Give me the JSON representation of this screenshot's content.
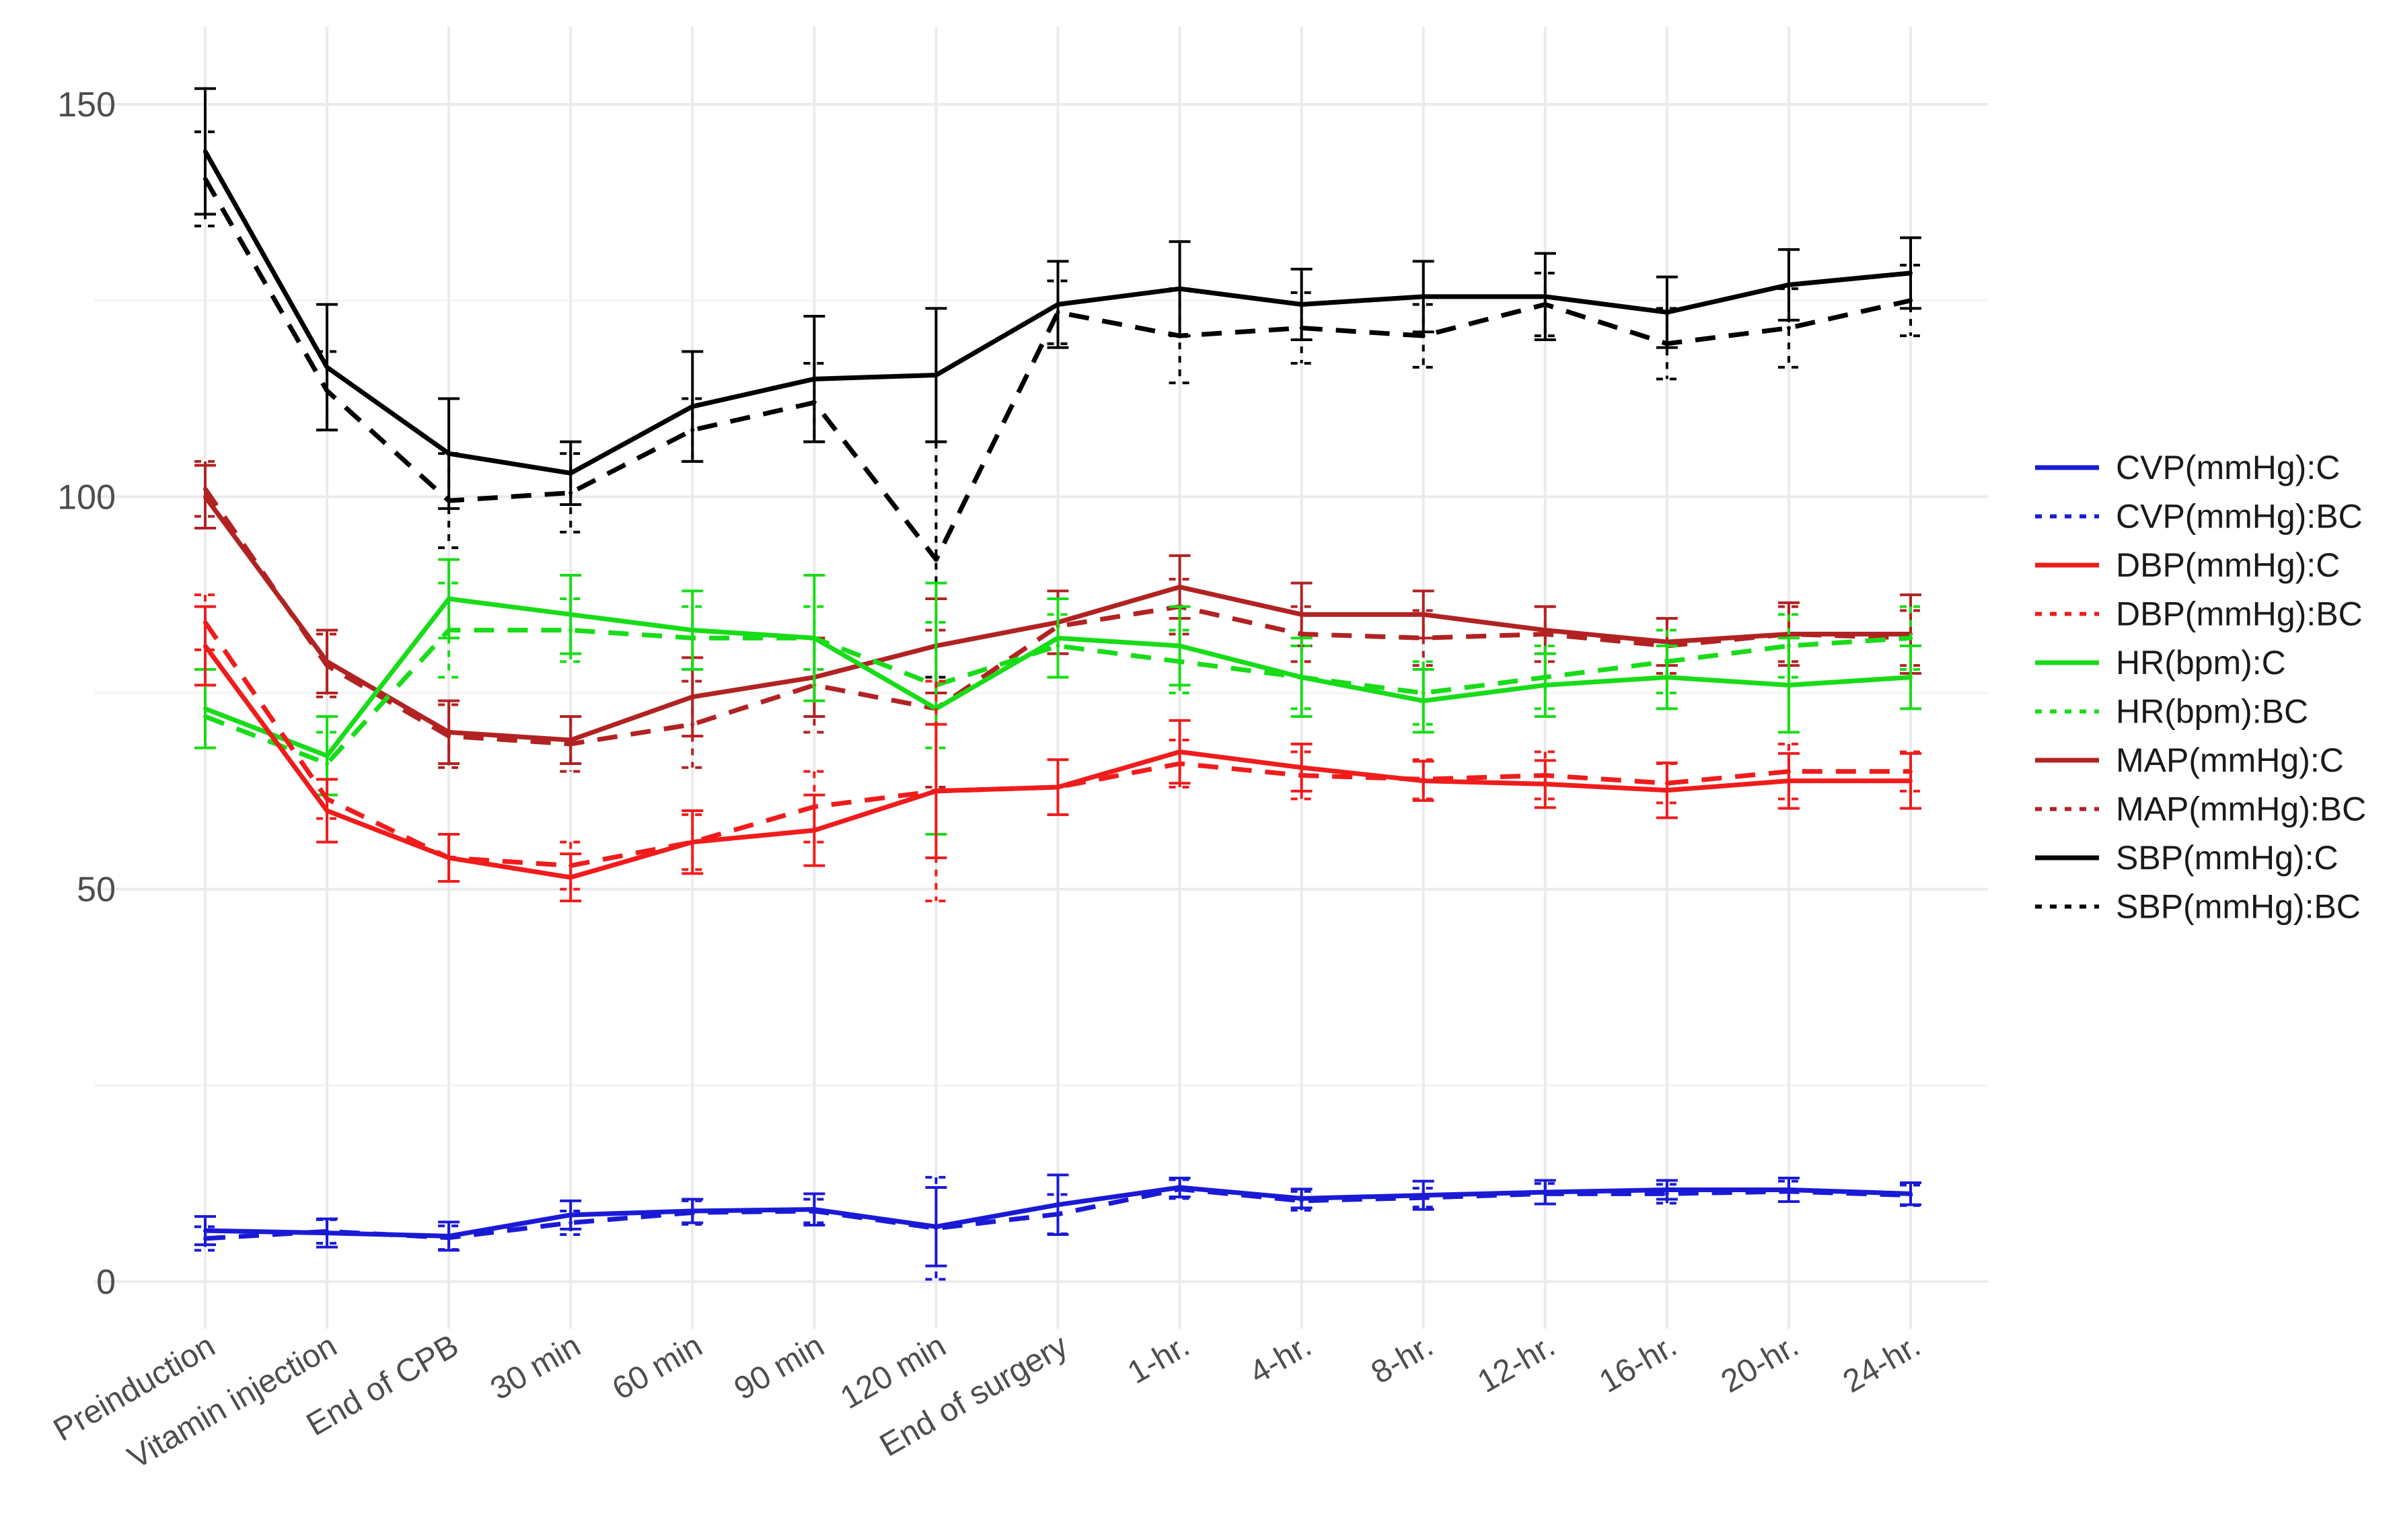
{
  "chart_data": {
    "type": "line",
    "title": "",
    "xlabel": "",
    "ylabel": "",
    "ylim": [
      -7,
      158
    ],
    "y_ticks": [
      "0",
      "50",
      "100",
      "150"
    ],
    "grid": "on",
    "legend_placement": "right",
    "categories": [
      "Preinduction",
      "Vitamin injection",
      "End of CPB",
      "30 min",
      "60 min",
      "90 min",
      "120 min",
      "End of surgery",
      "1-hr.",
      "4-hr.",
      "8-hr.",
      "12-hr.",
      "16-hr.",
      "20-hr.",
      "24-hr."
    ],
    "series": [
      {
        "name": "CVP(mmHg):C",
        "color": "#1a1ad6",
        "dash": false,
        "values": [
          6.5,
          6.2,
          5.8,
          8.5,
          9,
          9.2,
          7,
          9.8,
          12,
          10.6,
          11,
          11.4,
          11.7,
          11.7,
          11.2
        ],
        "errors": [
          1.8,
          1.8,
          1.8,
          1.8,
          1.5,
          2.0,
          5.0,
          3.8,
          1.2,
          1.2,
          1.8,
          1.5,
          1.2,
          1.5,
          1.4
        ]
      },
      {
        "name": "CVP(mmHg):BC",
        "color": "#1a1ad6",
        "dash": true,
        "values": [
          5.5,
          6.4,
          5.6,
          7.5,
          8.8,
          9,
          6.8,
          8.6,
          11.8,
          10.3,
          10.7,
          11.2,
          11.2,
          11.5,
          11
        ],
        "errors": [
          1.5,
          1.5,
          1.5,
          1.5,
          1.5,
          1.5,
          6.5,
          2.5,
          1.2,
          1.2,
          1.2,
          1.3,
          1.2,
          1.3,
          1.3
        ]
      },
      {
        "name": "DBP(mmHg):C",
        "color": "#f01c1c",
        "dash": false,
        "values": [
          81,
          60,
          54,
          51.5,
          56,
          57.5,
          62.5,
          63,
          67.5,
          65.5,
          63.8,
          63.4,
          62.6,
          63.8,
          63.8
        ],
        "errors": [
          5,
          4,
          3,
          3,
          4,
          4.5,
          8.5,
          3.5,
          4,
          3,
          2.5,
          3,
          3.5,
          3.5,
          3.5
        ]
      },
      {
        "name": "DBP(mmHg):BC",
        "color": "#f01c1c",
        "dash": true,
        "values": [
          84,
          61.5,
          54,
          53,
          56,
          60.5,
          62.5,
          63,
          66,
          64.5,
          64,
          64.5,
          63.5,
          65,
          65
        ],
        "errors": [
          3.5,
          2.5,
          3,
          3,
          3.5,
          4.5,
          14,
          3.5,
          3,
          3,
          2.5,
          3,
          2.5,
          3.5,
          2.5
        ]
      },
      {
        "name": "HR(bpm):C",
        "color": "#18dc18",
        "dash": false,
        "values": [
          73,
          67,
          87,
          85,
          83,
          82,
          73,
          82,
          81,
          77,
          74,
          76,
          77,
          76,
          77
        ],
        "errors": [
          5,
          5,
          5,
          5,
          5,
          8,
          16,
          5,
          5,
          5,
          4,
          4,
          4,
          6,
          4
        ]
      },
      {
        "name": "HR(bpm):BC",
        "color": "#18dc18",
        "dash": true,
        "values": [
          72,
          66,
          83,
          83,
          82,
          82,
          76,
          81,
          79,
          77,
          75,
          77,
          79,
          81,
          82
        ],
        "errors": [
          4,
          4,
          6,
          4,
          4,
          4,
          8,
          4,
          4,
          4,
          4,
          4,
          4,
          4,
          4
        ]
      },
      {
        "name": "MAP(mmHg):C",
        "color": "#b22222",
        "dash": false,
        "values": [
          100,
          79,
          70,
          69,
          74.5,
          77,
          81,
          84,
          88.5,
          85,
          85,
          83,
          81.5,
          82.5,
          82.5
        ],
        "errors": [
          4,
          4,
          4,
          3,
          5,
          5,
          6,
          4,
          4,
          4,
          3,
          3,
          3,
          4,
          5
        ]
      },
      {
        "name": "MAP(mmHg):BC",
        "color": "#b22222",
        "dash": true,
        "values": [
          101,
          78.5,
          69.5,
          68.5,
          71,
          76,
          73,
          83.5,
          86,
          82.5,
          82,
          82.5,
          81,
          82.5,
          82
        ],
        "errors": [
          3.5,
          4,
          4,
          3.5,
          5.5,
          6,
          10,
          3.5,
          3.5,
          3.5,
          3.5,
          3.5,
          3.5,
          3.5,
          3.5
        ]
      },
      {
        "name": "SBP(mmHg):C",
        "color": "#000000",
        "dash": false,
        "values": [
          144,
          116.5,
          105.5,
          103,
          111.5,
          115,
          115.5,
          124.5,
          126.5,
          124.5,
          125.5,
          125.5,
          123.5,
          127,
          128.5
        ],
        "errors": [
          8,
          8,
          7,
          4,
          7,
          8,
          8.5,
          5.5,
          6,
          4.5,
          4.5,
          5.5,
          4.5,
          4.5,
          4.5
        ]
      },
      {
        "name": "SBP(mmHg):BC",
        "color": "#000000",
        "dash": true,
        "values": [
          140.5,
          113.5,
          99.5,
          100.5,
          108.5,
          112,
          92,
          123.5,
          120.5,
          121.5,
          120.5,
          124.5,
          119.5,
          121.5,
          125
        ],
        "errors": [
          6,
          5,
          6,
          5,
          4,
          5,
          15,
          4,
          6,
          4.5,
          4,
          4,
          4.5,
          5,
          4.5
        ]
      }
    ]
  }
}
